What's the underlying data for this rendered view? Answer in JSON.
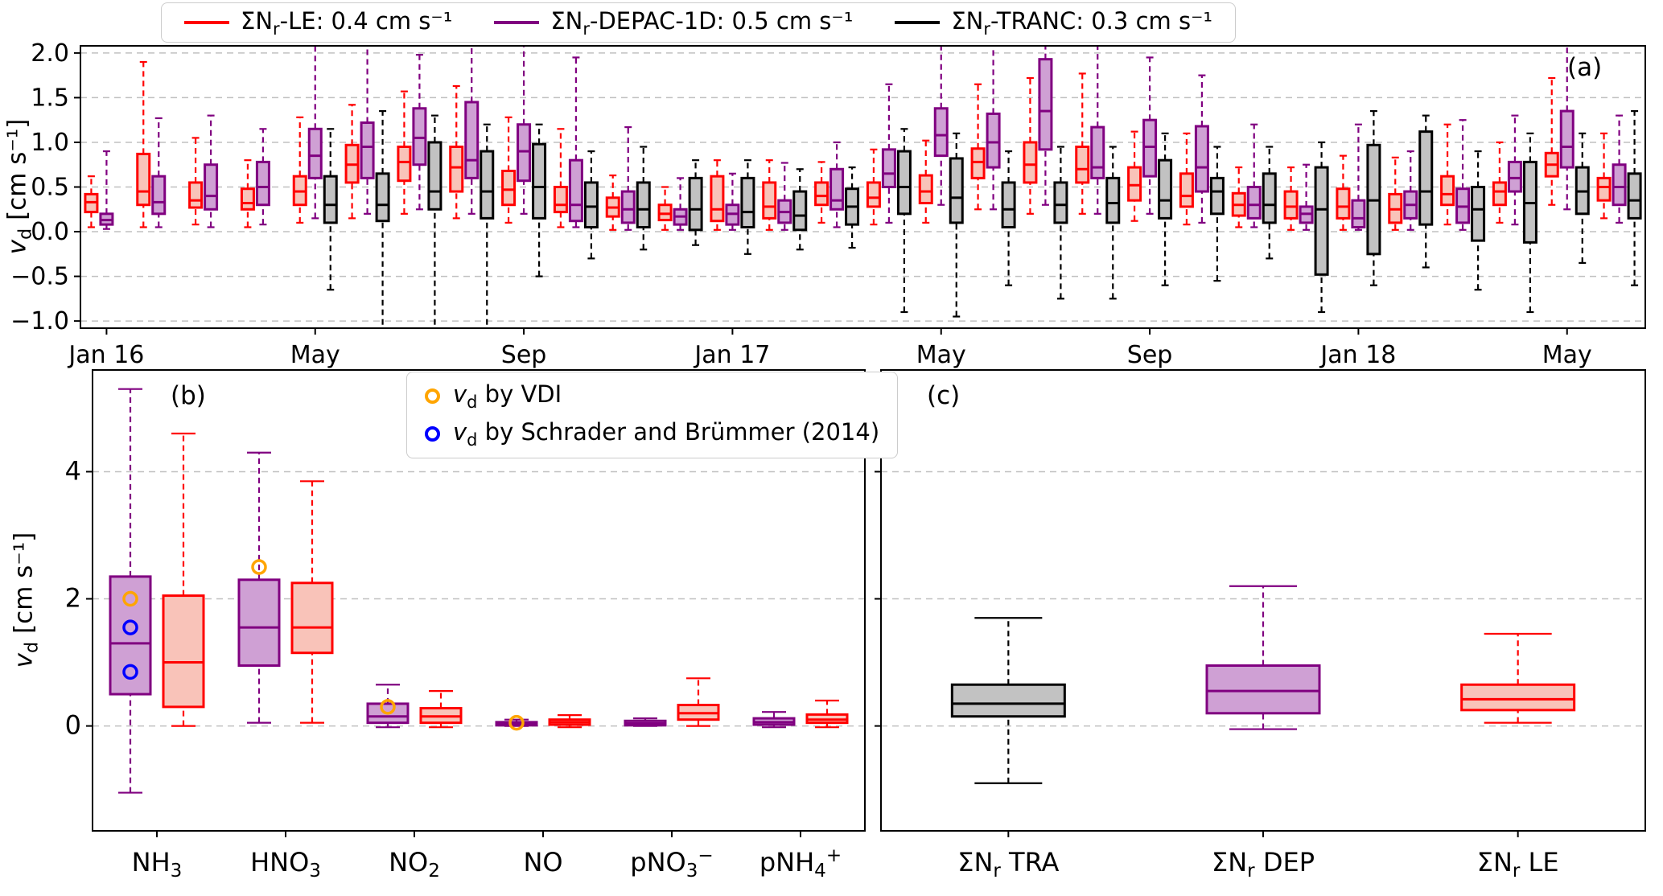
{
  "colors": {
    "le": "#ff0000",
    "le_fill": "#f9c3b9",
    "depac": "#800080",
    "depac_fill": "#cfa0d4",
    "tranc": "#000000",
    "tranc_fill": "#c2c2c2",
    "vdi": "#ffa500",
    "schrader": "#0000ff",
    "grid": "#c0c0c0"
  },
  "legend": {
    "entries": [
      {
        "prefix": "ΣN",
        "sub": "r",
        "rest": "-LE: 0.4 cm s⁻¹",
        "color_key": "le"
      },
      {
        "prefix": "ΣN",
        "sub": "r",
        "rest": "-DEPAC-1D: 0.5 cm s⁻¹",
        "color_key": "depac"
      },
      {
        "prefix": "ΣN",
        "sub": "r",
        "rest": "-TRANC: 0.3 cm s⁻¹",
        "color_key": "tranc"
      }
    ]
  },
  "marker_legend": {
    "vdi": {
      "v": "v",
      "sub": "d",
      "rest": " by VDI"
    },
    "schrader": {
      "v": "v",
      "sub": "d",
      "rest": " by Schrader and Brümmer (2014)"
    }
  },
  "ylabel_parts": {
    "v": "v",
    "sub": "d",
    "units": " [cm s⁻¹]"
  },
  "chart_data": [
    {
      "id": "a",
      "type": "boxplot",
      "title": "(a)",
      "ylabel": "vd [cm s⁻¹]",
      "ylim": [
        -1.08,
        2.08
      ],
      "ytick_vals": [
        2.0,
        1.5,
        1.0,
        0.5,
        0.0,
        -0.5,
        -1.0
      ],
      "ytick_labels": [
        "2.0",
        "1.5",
        "1.0",
        "0.5",
        "0.0",
        "−0.5",
        "−1.0"
      ],
      "grid": true,
      "categories": [
        "Jan 2016",
        "Feb 2016",
        "Mar 2016",
        "Apr 2016",
        "May 2016",
        "Jun 2016",
        "Jul 2016",
        "Aug 2016",
        "Sep 2016",
        "Oct 2016",
        "Nov 2016",
        "Dec 2016",
        "Jan 2017",
        "Feb 2017",
        "Mar 2017",
        "Apr 2017",
        "May 2017",
        "Jun 2017",
        "Jul 2017",
        "Aug 2017",
        "Sep 2017",
        "Oct 2017",
        "Nov 2017",
        "Dec 2017",
        "Jan 2018",
        "Feb 2018",
        "Mar 2018",
        "Apr 2018",
        "May 2018",
        "Jun 2018"
      ],
      "xticks": [
        {
          "i": 0,
          "label": {
            "pre": "Jan 16"
          }
        },
        {
          "i": 4,
          "label": {
            "pre": "May"
          }
        },
        {
          "i": 8,
          "label": {
            "pre": "Sep"
          }
        },
        {
          "i": 12,
          "label": {
            "pre": "Jan 17"
          }
        },
        {
          "i": 16,
          "label": {
            "pre": "May"
          }
        },
        {
          "i": 20,
          "label": {
            "pre": "Sep"
          }
        },
        {
          "i": 24,
          "label": {
            "pre": "Jan 18"
          }
        },
        {
          "i": 28,
          "label": {
            "pre": "May"
          }
        }
      ],
      "series": [
        {
          "name": "ΣNr-LE",
          "color": "le",
          "boxes": [
            [
              0.05,
              0.22,
              0.33,
              0.42,
              0.62
            ],
            [
              0.05,
              0.3,
              0.45,
              0.87,
              1.9
            ],
            [
              0.08,
              0.27,
              0.35,
              0.55,
              1.05
            ],
            [
              0.05,
              0.25,
              0.32,
              0.48,
              0.8
            ],
            [
              0.1,
              0.3,
              0.45,
              0.62,
              1.28
            ],
            [
              0.15,
              0.55,
              0.75,
              0.97,
              1.42
            ],
            [
              0.2,
              0.57,
              0.78,
              0.95,
              1.57
            ],
            [
              0.15,
              0.45,
              0.72,
              0.95,
              1.63
            ],
            [
              0.1,
              0.3,
              0.47,
              0.68,
              1.28
            ],
            [
              0.05,
              0.22,
              0.3,
              0.5,
              1.15
            ],
            [
              0.02,
              0.17,
              0.27,
              0.38,
              0.63
            ],
            [
              0.02,
              0.13,
              0.2,
              0.3,
              0.5
            ],
            [
              0.02,
              0.12,
              0.25,
              0.62,
              0.8
            ],
            [
              0.02,
              0.15,
              0.28,
              0.55,
              0.8
            ],
            [
              0.1,
              0.3,
              0.4,
              0.55,
              0.78
            ],
            [
              0.08,
              0.28,
              0.38,
              0.55,
              0.92
            ],
            [
              0.1,
              0.32,
              0.45,
              0.63,
              1.02
            ],
            [
              0.25,
              0.6,
              0.78,
              0.93,
              1.65
            ],
            [
              0.2,
              0.55,
              0.75,
              1.0,
              1.72
            ],
            [
              0.2,
              0.55,
              0.7,
              0.95,
              1.77
            ],
            [
              0.12,
              0.35,
              0.52,
              0.72,
              1.12
            ],
            [
              0.08,
              0.28,
              0.4,
              0.65,
              1.1
            ],
            [
              0.05,
              0.18,
              0.3,
              0.43,
              0.72
            ],
            [
              0.02,
              0.15,
              0.28,
              0.45,
              0.72
            ],
            [
              0.02,
              0.15,
              0.28,
              0.48,
              0.85
            ],
            [
              0.02,
              0.1,
              0.25,
              0.42,
              0.83
            ],
            [
              0.08,
              0.3,
              0.42,
              0.62,
              1.2
            ],
            [
              0.1,
              0.3,
              0.45,
              0.55,
              1.0
            ],
            [
              0.3,
              0.62,
              0.75,
              0.88,
              1.72
            ],
            [
              0.15,
              0.35,
              0.5,
              0.6,
              1.1
            ]
          ]
        },
        {
          "name": "ΣNr-DEPAC-1D",
          "color": "depac",
          "boxes": [
            [
              0.03,
              0.08,
              0.13,
              0.2,
              0.9
            ],
            [
              0.05,
              0.2,
              0.33,
              0.62,
              1.27
            ],
            [
              0.05,
              0.25,
              0.4,
              0.75,
              1.3
            ],
            [
              0.08,
              0.3,
              0.5,
              0.78,
              1.15
            ],
            [
              0.15,
              0.6,
              0.85,
              1.15,
              2.1
            ],
            [
              0.2,
              0.6,
              0.95,
              1.22,
              2.1
            ],
            [
              0.25,
              0.75,
              1.05,
              1.38,
              1.98
            ],
            [
              0.2,
              0.6,
              0.8,
              1.45,
              2.1
            ],
            [
              0.2,
              0.57,
              0.9,
              1.2,
              2.1
            ],
            [
              0.05,
              0.12,
              0.3,
              0.8,
              1.95
            ],
            [
              0.02,
              0.1,
              0.25,
              0.45,
              1.17
            ],
            [
              0.02,
              0.08,
              0.17,
              0.25,
              0.6
            ],
            [
              0.02,
              0.08,
              0.2,
              0.3,
              0.65
            ],
            [
              0.02,
              0.1,
              0.22,
              0.35,
              0.77
            ],
            [
              0.05,
              0.25,
              0.35,
              0.7,
              1.0
            ],
            [
              0.1,
              0.5,
              0.65,
              0.92,
              1.65
            ],
            [
              0.3,
              0.85,
              1.08,
              1.38,
              2.1
            ],
            [
              0.25,
              0.72,
              1.0,
              1.32,
              2.1
            ],
            [
              0.3,
              0.92,
              1.35,
              1.93,
              2.1
            ],
            [
              0.2,
              0.6,
              0.72,
              1.17,
              2.1
            ],
            [
              0.2,
              0.62,
              0.95,
              1.25,
              1.95
            ],
            [
              0.1,
              0.45,
              0.72,
              1.18,
              1.75
            ],
            [
              0.05,
              0.15,
              0.3,
              0.5,
              1.2
            ],
            [
              0.02,
              0.1,
              0.2,
              0.28,
              0.75
            ],
            [
              0.02,
              0.05,
              0.15,
              0.35,
              1.2
            ],
            [
              0.02,
              0.15,
              0.3,
              0.45,
              0.9
            ],
            [
              0.02,
              0.1,
              0.28,
              0.48,
              1.25
            ],
            [
              0.08,
              0.45,
              0.6,
              0.78,
              1.3
            ],
            [
              0.25,
              0.72,
              0.95,
              1.35,
              2.1
            ],
            [
              0.1,
              0.3,
              0.5,
              0.75,
              1.3
            ]
          ]
        },
        {
          "name": "ΣNr-TRANC",
          "color": "tranc",
          "boxes": [
            null,
            null,
            null,
            null,
            [
              -0.65,
              0.1,
              0.3,
              0.62,
              1.15
            ],
            [
              -1.15,
              0.12,
              0.3,
              0.65,
              1.35
            ],
            [
              -1.15,
              0.25,
              0.45,
              1.0,
              1.3
            ],
            [
              -1.15,
              0.15,
              0.45,
              0.9,
              1.2
            ],
            [
              -0.5,
              0.15,
              0.5,
              0.98,
              1.2
            ],
            [
              -0.3,
              0.05,
              0.28,
              0.55,
              0.9
            ],
            [
              -0.2,
              0.05,
              0.25,
              0.55,
              0.95
            ],
            [
              -0.15,
              0.02,
              0.25,
              0.6,
              0.8
            ],
            [
              -0.25,
              0.05,
              0.22,
              0.6,
              0.8
            ],
            [
              -0.2,
              0.02,
              0.18,
              0.45,
              0.7
            ],
            [
              -0.18,
              0.08,
              0.28,
              0.48,
              0.72
            ],
            [
              -0.9,
              0.2,
              0.5,
              0.9,
              1.15
            ],
            [
              -0.95,
              0.1,
              0.38,
              0.82,
              1.1
            ],
            [
              -0.6,
              0.05,
              0.25,
              0.55,
              0.9
            ],
            [
              -0.75,
              0.1,
              0.3,
              0.55,
              0.95
            ],
            [
              -0.75,
              0.1,
              0.32,
              0.6,
              0.95
            ],
            [
              -0.6,
              0.15,
              0.35,
              0.8,
              1.1
            ],
            [
              -0.55,
              0.2,
              0.45,
              0.6,
              0.95
            ],
            [
              -0.3,
              0.1,
              0.3,
              0.65,
              0.95
            ],
            [
              -0.9,
              -0.48,
              0.25,
              0.72,
              1.0
            ],
            [
              -0.6,
              -0.25,
              0.35,
              0.97,
              1.35
            ],
            [
              -0.4,
              0.08,
              0.45,
              1.12,
              1.3
            ],
            [
              -0.65,
              -0.1,
              0.25,
              0.5,
              0.9
            ],
            [
              -0.9,
              -0.12,
              0.32,
              0.78,
              1.1
            ],
            [
              -0.35,
              0.2,
              0.45,
              0.72,
              1.1
            ],
            [
              -0.6,
              0.15,
              0.35,
              0.65,
              1.35
            ]
          ]
        }
      ]
    },
    {
      "id": "b",
      "type": "boxplot",
      "title": "(b)",
      "ylabel": "vd [cm s⁻¹]",
      "ylim": [
        -1.65,
        5.6
      ],
      "ytick_vals": [
        0,
        2,
        4
      ],
      "ytick_labels": [
        "0",
        "2",
        "4"
      ],
      "grid": true,
      "categories": [
        "NH3",
        "HNO3",
        "NO2",
        "NO",
        "pNO3-",
        "pNH4+"
      ],
      "xticks": [
        {
          "i": 0,
          "label": {
            "pre": "NH",
            "sub": "3"
          }
        },
        {
          "i": 1,
          "label": {
            "pre": "HNO",
            "sub": "3"
          }
        },
        {
          "i": 2,
          "label": {
            "pre": "NO",
            "sub": "2"
          }
        },
        {
          "i": 3,
          "label": {
            "pre": "NO"
          }
        },
        {
          "i": 4,
          "label": {
            "pre": "pNO",
            "sub": "3",
            "sup": "−"
          }
        },
        {
          "i": 5,
          "label": {
            "pre": "pNH",
            "sub": "4",
            "sup": "+"
          }
        }
      ],
      "series": [
        {
          "name": "DEPAC-1D",
          "color": "depac",
          "boxes": [
            [
              -1.05,
              0.5,
              1.3,
              2.35,
              5.3
            ],
            [
              0.05,
              0.95,
              1.55,
              2.3,
              4.3
            ],
            [
              -0.02,
              0.05,
              0.15,
              0.35,
              0.65
            ],
            [
              0.0,
              0.01,
              0.03,
              0.06,
              0.1
            ],
            [
              0.0,
              0.01,
              0.04,
              0.08,
              0.12
            ],
            [
              -0.02,
              0.02,
              0.06,
              0.12,
              0.22
            ]
          ]
        },
        {
          "name": "LE",
          "color": "le",
          "boxes": [
            [
              0.0,
              0.3,
              1.0,
              2.05,
              4.6
            ],
            [
              0.05,
              1.15,
              1.55,
              2.25,
              3.85
            ],
            [
              -0.02,
              0.05,
              0.15,
              0.28,
              0.55
            ],
            [
              -0.02,
              0.02,
              0.06,
              0.1,
              0.17
            ],
            [
              0.0,
              0.1,
              0.2,
              0.33,
              0.75
            ],
            [
              -0.02,
              0.05,
              0.1,
              0.18,
              0.4
            ]
          ]
        }
      ],
      "markers": [
        {
          "cat": 0,
          "v": 2.0,
          "color": "vdi",
          "series": 0
        },
        {
          "cat": 0,
          "v": 1.55,
          "color": "schrader",
          "series": 0
        },
        {
          "cat": 0,
          "v": 0.85,
          "color": "schrader",
          "series": 0
        },
        {
          "cat": 1,
          "v": 2.5,
          "color": "vdi",
          "series": 0
        },
        {
          "cat": 2,
          "v": 0.3,
          "color": "vdi",
          "series": 0
        },
        {
          "cat": 3,
          "v": 0.05,
          "color": "vdi",
          "series": 0
        }
      ]
    },
    {
      "id": "c",
      "type": "boxplot",
      "title": "(c)",
      "ylabel": "",
      "ylim": [
        -1.65,
        5.6
      ],
      "ytick_vals": [
        0,
        2,
        4
      ],
      "ytick_labels": [
        "",
        "",
        ""
      ],
      "grid": true,
      "categories": [
        "ΣNr TRA",
        "ΣNr DEP",
        "ΣNr LE"
      ],
      "xticks": [
        {
          "i": 0,
          "label": {
            "pre": "ΣN",
            "sub": "r",
            "post": " TRA"
          }
        },
        {
          "i": 1,
          "label": {
            "pre": "ΣN",
            "sub": "r",
            "post": " DEP"
          }
        },
        {
          "i": 2,
          "label": {
            "pre": "ΣN",
            "sub": "r",
            "post": " LE"
          }
        }
      ],
      "series": [
        {
          "name": "ΣNr TRANC",
          "color": "tranc",
          "boxes": [
            [
              -0.9,
              0.15,
              0.35,
              0.65,
              1.7
            ],
            null,
            null
          ]
        },
        {
          "name": "ΣNr DEPAC",
          "color": "depac",
          "boxes": [
            null,
            [
              -0.05,
              0.2,
              0.55,
              0.95,
              2.2
            ],
            null
          ]
        },
        {
          "name": "ΣNr LE",
          "color": "le",
          "boxes": [
            null,
            null,
            [
              0.05,
              0.25,
              0.42,
              0.65,
              1.45
            ]
          ]
        }
      ]
    }
  ]
}
